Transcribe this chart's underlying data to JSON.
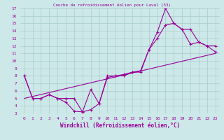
{
  "background_color": "#cce8e8",
  "grid_color": "#aacccc",
  "line_color": "#990099",
  "xlim": [
    -0.5,
    23.5
  ],
  "ylim": [
    3,
    17
  ],
  "xticks": [
    0,
    1,
    2,
    3,
    4,
    5,
    6,
    7,
    8,
    9,
    10,
    11,
    12,
    13,
    14,
    15,
    16,
    17,
    18,
    19,
    20,
    21,
    22,
    23
  ],
  "yticks": [
    3,
    4,
    5,
    6,
    7,
    8,
    9,
    10,
    11,
    12,
    13,
    14,
    15,
    16,
    17
  ],
  "xlabel": "Windchill (Refroidissement éolien,°C)",
  "line1_x": [
    0,
    1,
    2,
    3,
    4,
    5,
    6,
    7,
    8,
    9,
    10,
    11,
    12,
    13,
    14,
    15,
    16,
    17,
    18,
    19,
    20,
    21,
    22,
    23
  ],
  "line1_y": [
    8.0,
    5.0,
    5.0,
    5.5,
    5.0,
    4.5,
    3.3,
    3.2,
    6.2,
    4.3,
    7.8,
    8.0,
    8.2,
    8.5,
    8.7,
    11.5,
    13.8,
    17.0,
    15.0,
    14.2,
    12.2,
    12.5,
    12.0,
    12.0
  ],
  "line2_x": [
    0,
    1,
    2,
    3,
    4,
    5,
    6,
    7,
    8,
    9,
    10,
    11,
    12,
    13,
    14,
    15,
    16,
    17,
    18,
    19,
    20,
    21,
    22,
    23
  ],
  "line2_y": [
    8.0,
    5.0,
    5.0,
    5.5,
    5.0,
    5.0,
    5.0,
    3.2,
    3.5,
    4.3,
    8.0,
    8.0,
    8.0,
    8.5,
    8.5,
    11.5,
    13.0,
    14.8,
    15.0,
    14.2,
    14.2,
    12.5,
    12.0,
    11.2
  ],
  "line3_x": [
    0,
    23
  ],
  "line3_y": [
    5.0,
    11.0
  ],
  "title": "Courbe du refroidissement éolien pour Laval (53)"
}
